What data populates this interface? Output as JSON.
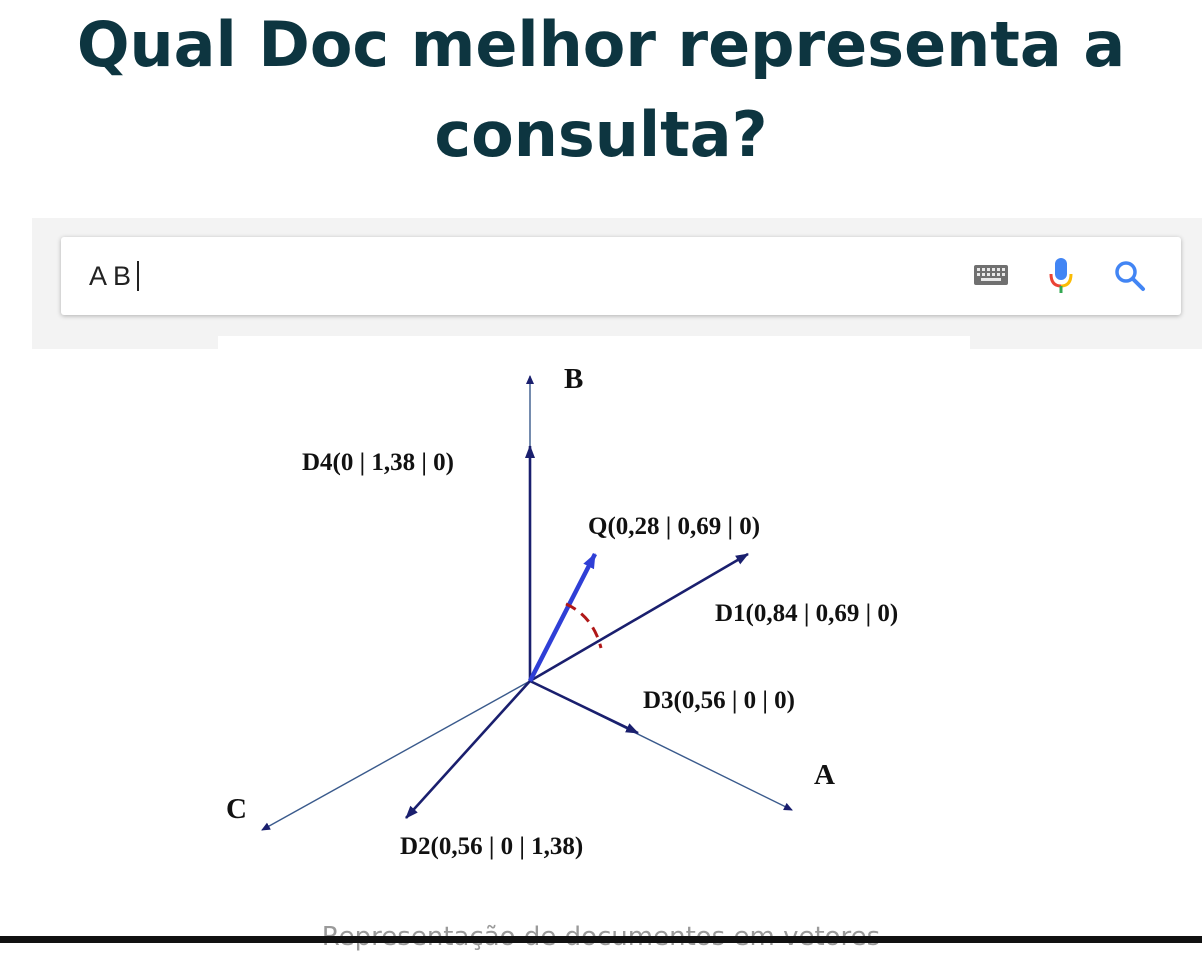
{
  "title": "Qual Doc melhor representa a consulta?",
  "search": {
    "query": "A B",
    "icons": [
      "keyboard-icon",
      "microphone-icon",
      "search-icon"
    ]
  },
  "diagram": {
    "axes": {
      "a": "A",
      "b": "B",
      "c": "C"
    },
    "vectors": {
      "d1": "D1(0,84 | 0,69 | 0)",
      "d2": "D2(0,56 | 0 | 1,38)",
      "d3": "D3(0,56 | 0 | 0)",
      "d4": "D4(0 | 1,38 | 0)",
      "q": "Q(0,28 | 0,69 | 0)"
    },
    "colors": {
      "axis": "#3a5a8c",
      "vector": "#1a1f6e",
      "query": "#2f3fd6",
      "angle": "#b01818"
    }
  },
  "caption": "Representação de documentos em vetores"
}
